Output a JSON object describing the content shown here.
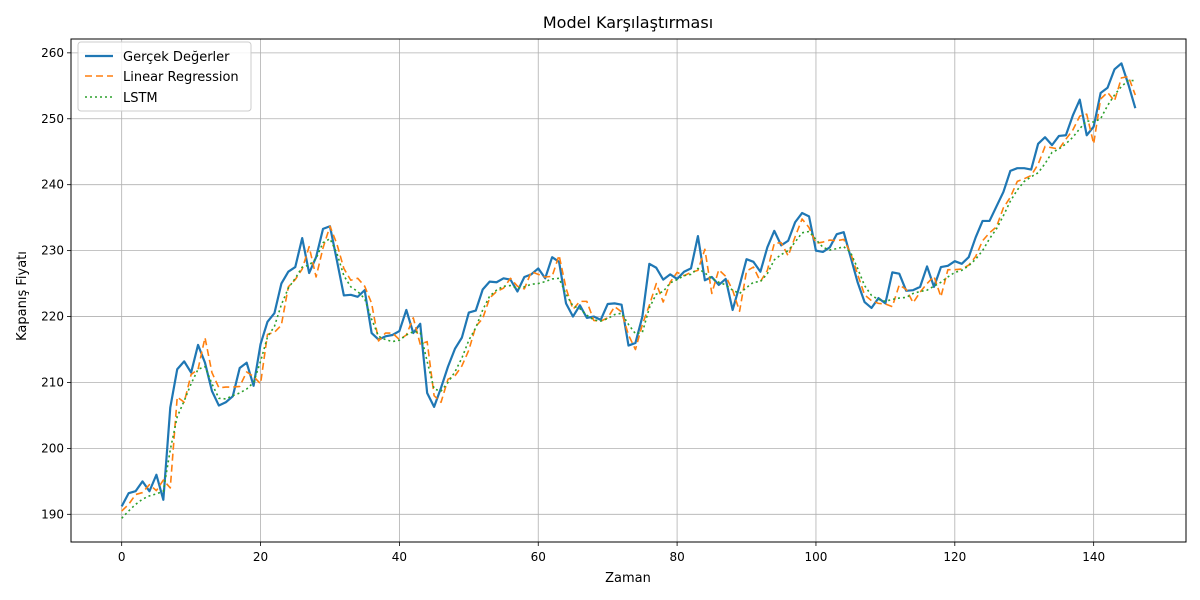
{
  "chart_data": {
    "type": "line",
    "title": "Model Karşılaştırması",
    "xlabel": "Zaman",
    "ylabel": "Kapanış Fiyatı",
    "xlim": [
      -7.3,
      153.3
    ],
    "ylim": [
      185.8,
      262.1
    ],
    "xticks": [
      0,
      20,
      40,
      60,
      80,
      100,
      120,
      140
    ],
    "yticks": [
      190,
      200,
      210,
      220,
      230,
      240,
      250,
      260
    ],
    "grid": true,
    "legend_position": "top-left",
    "series": [
      {
        "name": "Gerçek Değerler",
        "color": "#1f77b4",
        "style": "solid",
        "values": [
          191.2,
          193.2,
          193.5,
          195.0,
          193.5,
          196.0,
          192.2,
          206.2,
          212.0,
          213.2,
          211.5,
          215.7,
          213.0,
          208.7,
          206.5,
          207.0,
          207.9,
          212.2,
          213.0,
          209.5,
          215.8,
          219.2,
          220.5,
          225.0,
          226.8,
          227.5,
          231.9,
          226.6,
          229.0,
          233.3,
          233.7,
          228.5,
          223.2,
          223.3,
          223.0,
          224.0,
          217.5,
          216.5,
          217.0,
          217.2,
          217.8,
          221.0,
          217.5,
          218.9,
          208.4,
          206.3,
          209.2,
          212.4,
          215.1,
          216.8,
          220.6,
          220.9,
          224.1,
          225.3,
          225.2,
          225.8,
          225.6,
          223.8,
          226.0,
          226.4,
          227.3,
          225.8,
          229.0,
          228.3,
          222.0,
          220.0,
          221.7,
          219.8,
          220.0,
          219.5,
          221.9,
          222.0,
          221.8,
          215.6,
          216.0,
          220.0,
          228.0,
          227.4,
          225.6,
          226.4,
          225.7,
          226.8,
          227.3,
          232.2,
          225.5,
          226.0,
          224.8,
          225.7,
          221.0,
          224.7,
          228.7,
          228.3,
          226.8,
          230.5,
          233.0,
          230.8,
          231.5,
          234.3,
          235.7,
          235.2,
          230.0,
          229.8,
          230.5,
          232.5,
          232.8,
          229.0,
          225.2,
          222.2,
          221.3,
          222.8,
          222.0,
          226.7,
          226.5,
          223.9,
          224.0,
          224.5,
          227.6,
          224.5,
          227.5,
          227.7,
          228.4,
          228.0,
          229.0,
          232.0,
          234.5,
          234.5,
          236.7,
          238.9,
          242.1,
          242.5,
          242.5,
          242.3,
          246.2,
          247.2,
          246.0,
          247.4,
          247.5,
          250.5,
          252.9,
          247.5,
          248.8,
          253.9,
          254.7,
          257.5,
          258.4,
          255.2,
          251.6
        ]
      },
      {
        "name": "Linear Regression",
        "color": "#ff7f0e",
        "style": "dashed",
        "values": [
          190.5,
          191.5,
          193.0,
          193.3,
          194.5,
          193.6,
          195.2,
          194.0,
          207.8,
          207.0,
          211.2,
          212.0,
          216.8,
          211.5,
          209.2,
          209.3,
          209.3,
          209.4,
          211.6,
          210.9,
          209.8,
          217.3,
          217.6,
          218.7,
          224.5,
          225.6,
          227.2,
          230.6,
          226.0,
          230.4,
          233.7,
          231.0,
          227.3,
          225.5,
          225.8,
          224.6,
          222.0,
          216.3,
          217.5,
          217.5,
          216.5,
          217.2,
          219.8,
          215.8,
          216.2,
          208.0,
          207.0,
          210.5,
          211.0,
          212.5,
          214.9,
          218.5,
          219.7,
          222.8,
          223.8,
          224.3,
          225.8,
          224.6,
          224.2,
          226.8,
          226.4,
          226.0,
          226.1,
          229.3,
          224.3,
          221.1,
          222.3,
          222.3,
          219.4,
          219.3,
          219.8,
          221.5,
          220.7,
          217.2,
          215.0,
          218.8,
          221.7,
          225.0,
          222.2,
          225.2,
          226.7,
          226.2,
          226.7,
          227.0,
          230.2,
          223.5,
          227.1,
          226.1,
          224.0,
          220.8,
          226.9,
          227.5,
          225.3,
          227.0,
          231.1,
          231.2,
          229.2,
          232.1,
          234.8,
          233.5,
          231.1,
          231.3,
          231.6,
          231.5,
          231.7,
          229.6,
          226.4,
          223.3,
          222.4,
          222.0,
          221.9,
          221.5,
          224.8,
          224.1,
          222.1,
          223.7,
          225.0,
          226.1,
          223.0,
          227.1,
          227.1,
          227.2,
          227.8,
          229.1,
          231.5,
          232.7,
          233.6,
          236.5,
          238.1,
          240.5,
          240.9,
          241.4,
          243.1,
          245.8,
          245.6,
          245.4,
          246.9,
          248.3,
          250.4,
          250.7,
          246.2,
          253.0,
          254.0,
          252.7,
          256.2,
          256.4,
          253.6
        ]
      },
      {
        "name": "LSTM",
        "color": "#2ca02c",
        "style": "dotted",
        "values": [
          189.4,
          190.5,
          191.5,
          192.3,
          192.8,
          193.1,
          193.5,
          199.8,
          204.8,
          207.2,
          209.8,
          212.0,
          212.4,
          209.8,
          207.6,
          207.5,
          208.0,
          208.4,
          209.0,
          210.0,
          213.2,
          216.9,
          218.5,
          221.8,
          224.3,
          225.8,
          227.5,
          227.8,
          228.8,
          231.2,
          231.8,
          229.6,
          226.2,
          224.5,
          223.8,
          222.7,
          219.6,
          217.0,
          216.5,
          216.2,
          216.4,
          217.2,
          217.7,
          217.6,
          213.2,
          209.0,
          208.7,
          210.0,
          211.6,
          213.7,
          216.4,
          218.3,
          221.0,
          223.1,
          224.0,
          224.6,
          224.7,
          224.3,
          224.5,
          224.9,
          225.0,
          225.3,
          225.7,
          225.8,
          223.4,
          221.6,
          221.2,
          220.2,
          219.5,
          219.3,
          219.7,
          220.3,
          220.5,
          218.8,
          217.4,
          217.6,
          221.3,
          223.4,
          223.8,
          225.1,
          225.6,
          226.2,
          226.4,
          227.3,
          226.6,
          225.8,
          225.2,
          224.8,
          224.0,
          223.5,
          224.4,
          225.2,
          225.3,
          226.5,
          228.6,
          229.4,
          230.0,
          231.3,
          232.7,
          232.9,
          231.7,
          230.5,
          230.1,
          230.3,
          230.6,
          229.7,
          227.3,
          224.7,
          223.2,
          222.6,
          222.3,
          222.6,
          222.8,
          222.9,
          223.5,
          223.8,
          224.0,
          224.6,
          225.2,
          226.0,
          226.7,
          227.0,
          227.7,
          228.7,
          230.0,
          231.8,
          233.3,
          235.3,
          237.5,
          239.2,
          240.5,
          241.2,
          241.8,
          243.2,
          244.9,
          245.4,
          246.2,
          247.2,
          248.5,
          249.7,
          249.5,
          250.0,
          252.0,
          253.6,
          254.9,
          255.8,
          255.8
        ]
      }
    ]
  }
}
